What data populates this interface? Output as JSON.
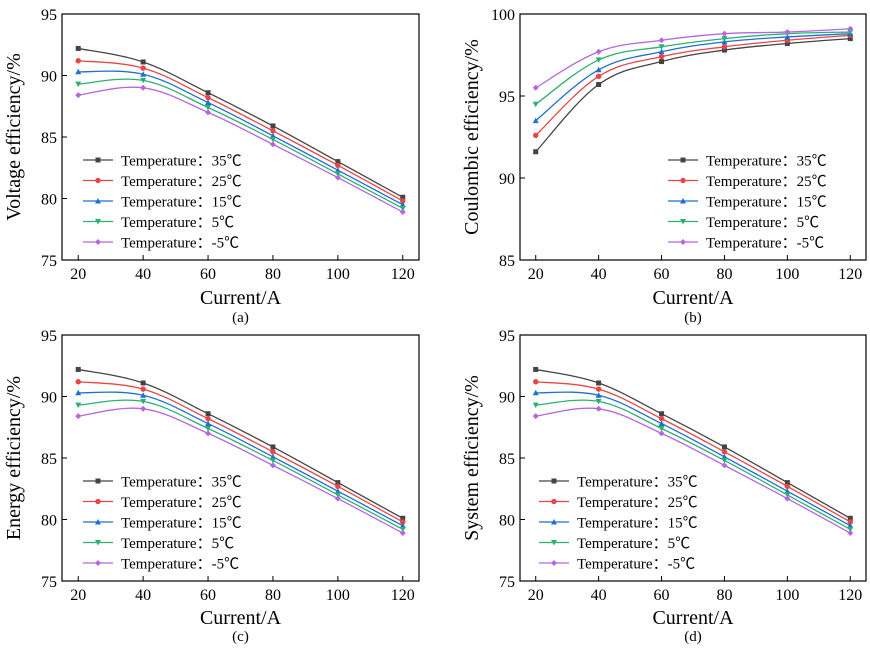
{
  "chart_data": [
    {
      "type": "line",
      "panel_label": "(a)",
      "xlabel": "Current/A",
      "ylabel": "Voltage efficiency/%",
      "x": [
        20,
        40,
        60,
        80,
        100,
        120
      ],
      "xlim": [
        15,
        125
      ],
      "ylim": [
        75,
        95
      ],
      "xticks": [
        20,
        40,
        60,
        80,
        100,
        120
      ],
      "yticks": [
        75,
        80,
        85,
        90,
        95
      ],
      "legend_position": "lower-left",
      "series": [
        {
          "name": "Temperature：35℃",
          "color": "#444444",
          "marker": "square",
          "values": [
            92.2,
            91.1,
            88.6,
            85.9,
            83.0,
            80.1
          ]
        },
        {
          "name": "Temperature：25℃",
          "color": "#ea4545",
          "marker": "circle",
          "values": [
            91.2,
            90.6,
            88.2,
            85.5,
            82.7,
            79.8
          ]
        },
        {
          "name": "Temperature：15℃",
          "color": "#1f6fd1",
          "marker": "triangle-up",
          "values": [
            90.3,
            90.1,
            87.8,
            85.1,
            82.3,
            79.5
          ]
        },
        {
          "name": "Temperature：5℃",
          "color": "#2caf73",
          "marker": "triangle-down",
          "values": [
            89.3,
            89.6,
            87.4,
            84.8,
            82.0,
            79.2
          ]
        },
        {
          "name": "Temperature：-5℃",
          "color": "#b566e0",
          "marker": "diamond",
          "values": [
            88.4,
            89.0,
            87.0,
            84.4,
            81.7,
            78.9
          ]
        }
      ]
    },
    {
      "type": "line",
      "panel_label": "(b)",
      "xlabel": "Current/A",
      "ylabel": "Coulombic efficiency/%",
      "x": [
        20,
        40,
        60,
        80,
        100,
        120
      ],
      "xlim": [
        15,
        125
      ],
      "ylim": [
        85,
        100
      ],
      "xticks": [
        20,
        40,
        60,
        80,
        100,
        120
      ],
      "yticks": [
        85,
        90,
        95,
        100
      ],
      "legend_position": "lower-right",
      "series": [
        {
          "name": "Temperature：35℃",
          "color": "#444444",
          "marker": "square",
          "values": [
            91.6,
            95.7,
            97.1,
            97.8,
            98.2,
            98.5
          ]
        },
        {
          "name": "Temperature：25℃",
          "color": "#ea4545",
          "marker": "circle",
          "values": [
            92.6,
            96.2,
            97.4,
            98.0,
            98.4,
            98.7
          ]
        },
        {
          "name": "Temperature：15℃",
          "color": "#1f6fd1",
          "marker": "triangle-up",
          "values": [
            93.5,
            96.6,
            97.7,
            98.3,
            98.6,
            98.8
          ]
        },
        {
          "name": "Temperature：5℃",
          "color": "#2caf73",
          "marker": "triangle-down",
          "values": [
            94.5,
            97.2,
            98.0,
            98.5,
            98.8,
            98.9
          ]
        },
        {
          "name": "Temperature：-5℃",
          "color": "#b566e0",
          "marker": "diamond",
          "values": [
            95.5,
            97.7,
            98.4,
            98.8,
            98.9,
            99.1
          ]
        }
      ]
    },
    {
      "type": "line",
      "panel_label": "(c)",
      "xlabel": "Current/A",
      "ylabel": "Energy efficiency/%",
      "x": [
        20,
        40,
        60,
        80,
        100,
        120
      ],
      "xlim": [
        15,
        125
      ],
      "ylim": [
        75,
        95
      ],
      "xticks": [
        20,
        40,
        60,
        80,
        100,
        120
      ],
      "yticks": [
        75,
        80,
        85,
        90,
        95
      ],
      "legend_position": "lower-left",
      "series": [
        {
          "name": "Temperature：35℃",
          "color": "#444444",
          "marker": "square",
          "values": [
            92.2,
            91.1,
            88.6,
            85.9,
            83.0,
            80.1
          ]
        },
        {
          "name": "Temperature：25℃",
          "color": "#ea4545",
          "marker": "circle",
          "values": [
            91.2,
            90.6,
            88.2,
            85.5,
            82.7,
            79.8
          ]
        },
        {
          "name": "Temperature：15℃",
          "color": "#1f6fd1",
          "marker": "triangle-up",
          "values": [
            90.3,
            90.1,
            87.8,
            85.1,
            82.3,
            79.5
          ]
        },
        {
          "name": "Temperature：5℃",
          "color": "#2caf73",
          "marker": "triangle-down",
          "values": [
            89.3,
            89.6,
            87.4,
            84.8,
            82.0,
            79.2
          ]
        },
        {
          "name": "Temperature：-5℃",
          "color": "#b566e0",
          "marker": "diamond",
          "values": [
            88.4,
            89.0,
            87.0,
            84.4,
            81.7,
            78.9
          ]
        }
      ]
    },
    {
      "type": "line",
      "panel_label": "(d)",
      "xlabel": "Current/A",
      "ylabel": "System efficiency/%",
      "x": [
        20,
        40,
        60,
        80,
        100,
        120
      ],
      "xlim": [
        15,
        125
      ],
      "ylim": [
        75,
        95
      ],
      "xticks": [
        20,
        40,
        60,
        80,
        100,
        120
      ],
      "yticks": [
        75,
        80,
        85,
        90,
        95
      ],
      "legend_position": "lower-left",
      "series": [
        {
          "name": "Temperature：35℃",
          "color": "#444444",
          "marker": "square",
          "values": [
            92.2,
            91.1,
            88.6,
            85.9,
            83.0,
            80.1
          ]
        },
        {
          "name": "Temperature：25℃",
          "color": "#ea4545",
          "marker": "circle",
          "values": [
            91.2,
            90.6,
            88.2,
            85.5,
            82.7,
            79.8
          ]
        },
        {
          "name": "Temperature：15℃",
          "color": "#1f6fd1",
          "marker": "triangle-up",
          "values": [
            90.3,
            90.1,
            87.8,
            85.1,
            82.3,
            79.5
          ]
        },
        {
          "name": "Temperature：5℃",
          "color": "#2caf73",
          "marker": "triangle-down",
          "values": [
            89.3,
            89.6,
            87.4,
            84.8,
            82.0,
            79.2
          ]
        },
        {
          "name": "Temperature：-5℃",
          "color": "#b566e0",
          "marker": "diamond",
          "values": [
            88.4,
            89.0,
            87.0,
            84.4,
            81.7,
            78.9
          ]
        }
      ]
    }
  ]
}
